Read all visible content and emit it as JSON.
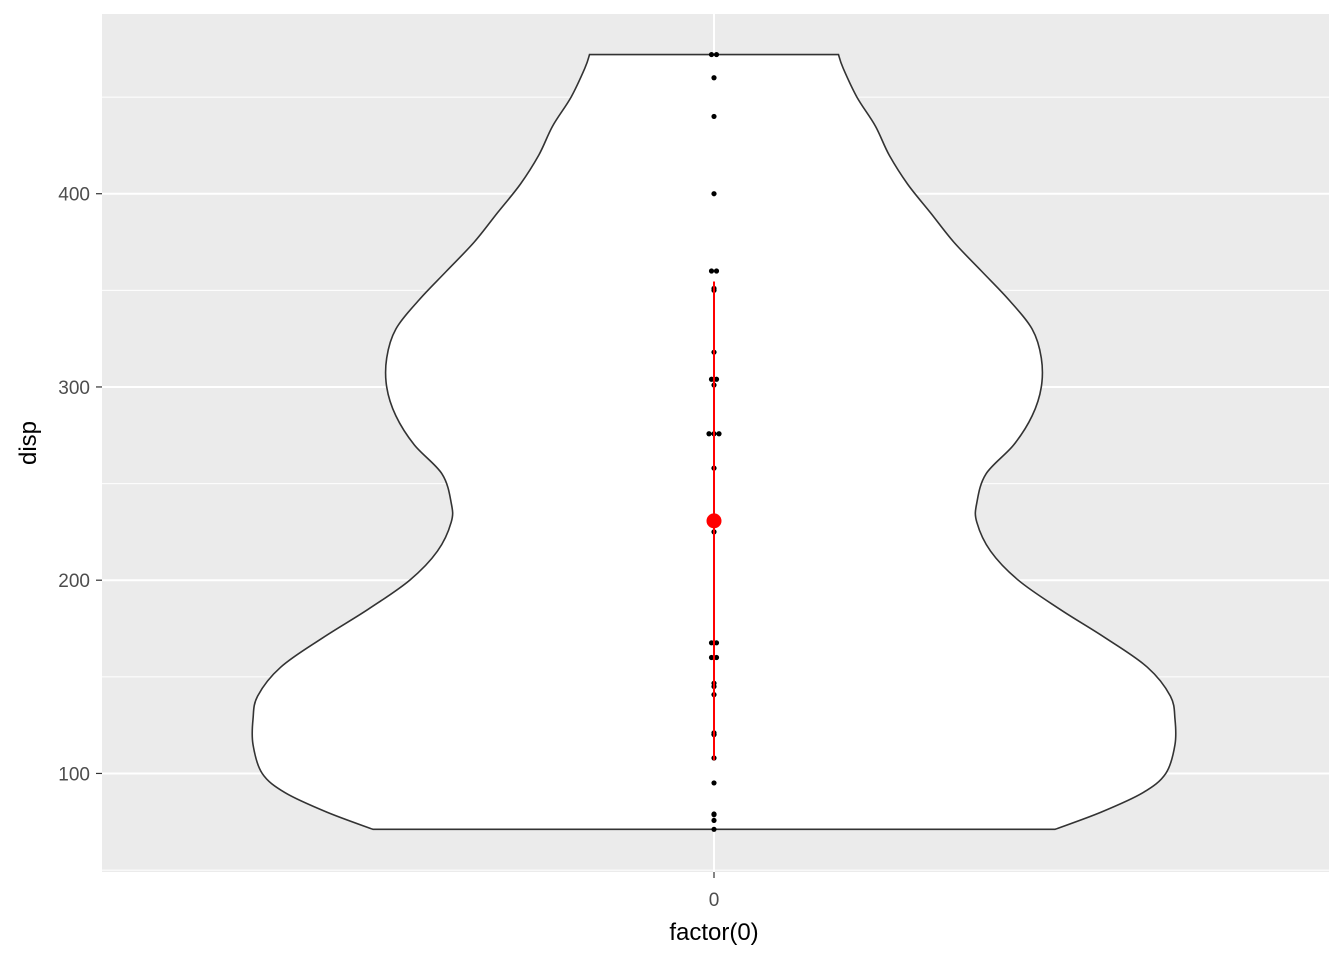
{
  "chart_data": {
    "type": "violin",
    "xlabel": "factor(0)",
    "ylabel": "disp",
    "x_category": "0",
    "ylim": [
      49,
      493
    ],
    "y_ticks": [
      100,
      200,
      300,
      400
    ],
    "grid": true,
    "background": "#ebebeb",
    "violin": {
      "min": 71.1,
      "max": 472,
      "fill": "#ffffff",
      "outline": "#333333",
      "profile_half_width_fraction": [
        {
          "y": 71.1,
          "w": 0.74
        },
        {
          "y": 80,
          "w": 0.84
        },
        {
          "y": 90,
          "w": 0.93
        },
        {
          "y": 100,
          "w": 0.98
        },
        {
          "y": 115,
          "w": 1.0
        },
        {
          "y": 128,
          "w": 1.0
        },
        {
          "y": 140,
          "w": 0.99
        },
        {
          "y": 155,
          "w": 0.94
        },
        {
          "y": 170,
          "w": 0.85
        },
        {
          "y": 185,
          "w": 0.75
        },
        {
          "y": 200,
          "w": 0.66
        },
        {
          "y": 215,
          "w": 0.6
        },
        {
          "y": 230,
          "w": 0.57
        },
        {
          "y": 240,
          "w": 0.57
        },
        {
          "y": 255,
          "w": 0.59
        },
        {
          "y": 270,
          "w": 0.65
        },
        {
          "y": 285,
          "w": 0.69
        },
        {
          "y": 300,
          "w": 0.71
        },
        {
          "y": 315,
          "w": 0.71
        },
        {
          "y": 330,
          "w": 0.69
        },
        {
          "y": 345,
          "w": 0.64
        },
        {
          "y": 360,
          "w": 0.58
        },
        {
          "y": 375,
          "w": 0.52
        },
        {
          "y": 390,
          "w": 0.47
        },
        {
          "y": 405,
          "w": 0.42
        },
        {
          "y": 420,
          "w": 0.38
        },
        {
          "y": 435,
          "w": 0.35
        },
        {
          "y": 450,
          "w": 0.31
        },
        {
          "y": 465,
          "w": 0.28
        },
        {
          "y": 472,
          "w": 0.27
        }
      ]
    },
    "points": [
      {
        "y": 472,
        "n": 2
      },
      {
        "y": 460,
        "n": 1
      },
      {
        "y": 440,
        "n": 1
      },
      {
        "y": 400,
        "n": 1
      },
      {
        "y": 360,
        "n": 2
      },
      {
        "y": 351,
        "n": 1
      },
      {
        "y": 350,
        "n": 1
      },
      {
        "y": 318,
        "n": 1
      },
      {
        "y": 304,
        "n": 2
      },
      {
        "y": 301,
        "n": 1
      },
      {
        "y": 275.8,
        "n": 3
      },
      {
        "y": 258,
        "n": 1
      },
      {
        "y": 225,
        "n": 1
      },
      {
        "y": 167.6,
        "n": 2
      },
      {
        "y": 160,
        "n": 2
      },
      {
        "y": 145,
        "n": 1
      },
      {
        "y": 146.7,
        "n": 1
      },
      {
        "y": 140.8,
        "n": 1
      },
      {
        "y": 120.3,
        "n": 1
      },
      {
        "y": 121,
        "n": 1
      },
      {
        "y": 120.1,
        "n": 1
      },
      {
        "y": 108,
        "n": 1
      },
      {
        "y": 95.1,
        "n": 1
      },
      {
        "y": 79,
        "n": 1
      },
      {
        "y": 78.7,
        "n": 1
      },
      {
        "y": 75.7,
        "n": 1
      },
      {
        "y": 71.1,
        "n": 1
      }
    ],
    "summary": {
      "mean": 230.7,
      "lower": 106.8,
      "upper": 354.6,
      "color": "#ff0000"
    }
  }
}
